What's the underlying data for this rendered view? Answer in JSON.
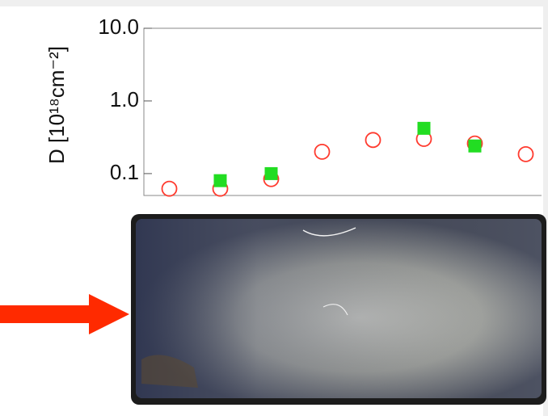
{
  "chart_data": {
    "type": "scatter",
    "y_label": "D [10¹⁸cm⁻²]",
    "categories": [
      null,
      null,
      null,
      null,
      null,
      null,
      null,
      null
    ],
    "series": [
      {
        "color": "#ff3b2f",
        "marker": "circle",
        "values": [
          0.062,
          0.062,
          0.084,
          0.2,
          0.29,
          0.3,
          0.26,
          0.185
        ]
      },
      {
        "color": "#22dd22",
        "marker": "square",
        "values": [
          null,
          0.08,
          0.1,
          null,
          null,
          0.42,
          0.24,
          null
        ]
      }
    ],
    "ylim": [
      0.05,
      10
    ],
    "yscale": "log",
    "yticks": [
      {
        "value": 10,
        "label": "10.0"
      },
      {
        "value": 1,
        "label": "1.0"
      },
      0.1
    ]
  }
}
